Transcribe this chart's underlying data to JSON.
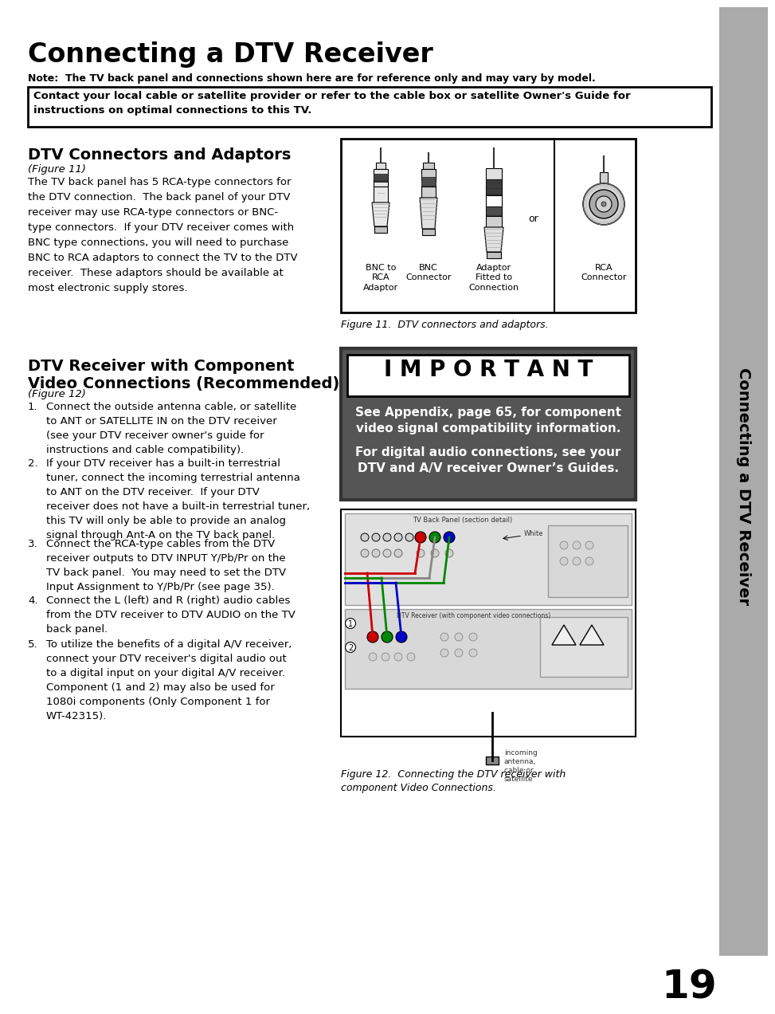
{
  "title": "Connecting a DTV Receiver",
  "note_bold": "Note:  The TV back panel and connections shown here are for reference only and may vary by model.",
  "contact_box_text": "Contact your local cable or satellite provider or refer to the cable box or satellite Owner's Guide for\ninstructions on optimal connections to this TV.",
  "section1_title": "DTV Connectors and Adaptors",
  "section1_figure": "(Figure 11)",
  "section1_body": "The TV back panel has 5 RCA-type connectors for\nthe DTV connection.  The back panel of your DTV\nreceiver may use RCA-type connectors or BNC-\ntype connectors.  If your DTV receiver comes with\nBNC type connections, you will need to purchase\nBNC to RCA adaptors to connect the TV to the DTV\nreceiver.  These adaptors should be available at\nmost electronic supply stores.",
  "fig11_caption": "Figure 11.  DTV connectors and adaptors.",
  "important_title": "I M P O R T A N T",
  "important_line1": "See Appendix, page 65, for component",
  "important_line2": "video signal compatibility information.",
  "important_line3": "For digital audio connections, see your",
  "important_line4": "DTV and A/V receiver Owner’s Guides.",
  "section2_title": "DTV Receiver with Component\nVideo Connections (Recommended)",
  "section2_figure": "(Figure 12)",
  "section2_items": [
    "Connect the outside antenna cable, or satellite\nto ANT or SATELLITE IN on the DTV receiver\n(see your DTV receiver owner's guide for\ninstructions and cable compatibility).",
    "If your DTV receiver has a built-in terrestrial\ntuner, connect the incoming terrestrial antenna\nto ANT on the DTV receiver.  If your DTV\nreceiver does not have a built-in terrestrial tuner,\nthis TV will only be able to provide an analog\nsignal through Ant-A on the TV back panel.",
    "Connect the RCA-type cables from the DTV\nreceiver outputs to DTV INPUT Y/Pb/Pr on the\nTV back panel.  You may need to set the DTV\nInput Assignment to Y/Pb/Pr (see page 35).",
    "Connect the L (left) and R (right) audio cables\nfrom the DTV receiver to DTV AUDIO on the TV\nback panel.",
    "To utilize the benefits of a digital A/V receiver,\nconnect your DTV receiver's digital audio out\nto a digital input on your digital A/V receiver.\nComponent (1 and 2) may also be used for\n1080i components (Only Component 1 for\nWT-42315)."
  ],
  "fig12_caption": "Figure 12.  Connecting the DTV receiver with\ncomponent Video Connections.",
  "sidebar_text": "Connecting a DTV Receiver",
  "page_number": "19",
  "bg_color": "#ffffff",
  "sidebar_bg": "#aaaaaa",
  "important_header_bg": "#ffffff",
  "important_body_bg": "#555555"
}
